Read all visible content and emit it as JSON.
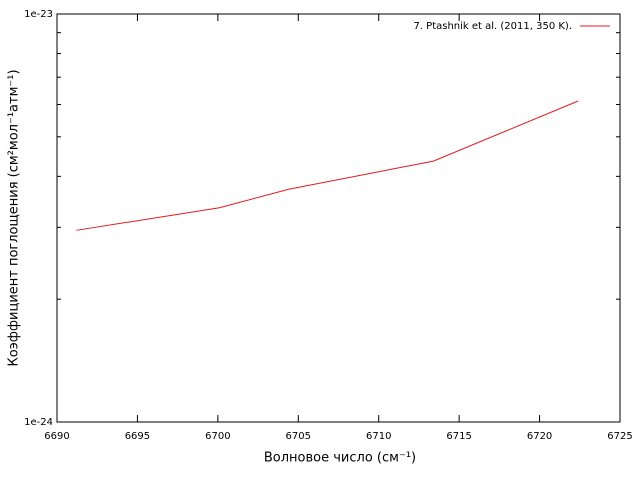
{
  "chart_data": {
    "type": "line",
    "xlabel": "Волновое число (см⁻¹)",
    "ylabel": "Коэффициент поглощения (см²мол⁻¹атм⁻¹)",
    "x": [
      6691.2,
      6700.1,
      6704.4,
      6713.4,
      6722.4
    ],
    "series": [
      {
        "name": "7. Ptashnik et al. (2011, 350 K).",
        "color": "#e41a1c",
        "values": [
          2.95e-24,
          3.35e-24,
          3.72e-24,
          4.36e-24,
          6.12e-24
        ]
      }
    ],
    "xlim": [
      6690,
      6725
    ],
    "xticks": [
      6690,
      6695,
      6700,
      6705,
      6710,
      6715,
      6720,
      6725
    ],
    "ylim": [
      1e-24,
      1e-23
    ],
    "yticks": [
      1e-24,
      1e-23
    ],
    "yminorticks": [
      2e-24,
      3e-24,
      4e-24,
      5e-24,
      6e-24,
      7e-24,
      8e-24,
      9e-24
    ],
    "ylog": true,
    "legend": "top-right"
  }
}
